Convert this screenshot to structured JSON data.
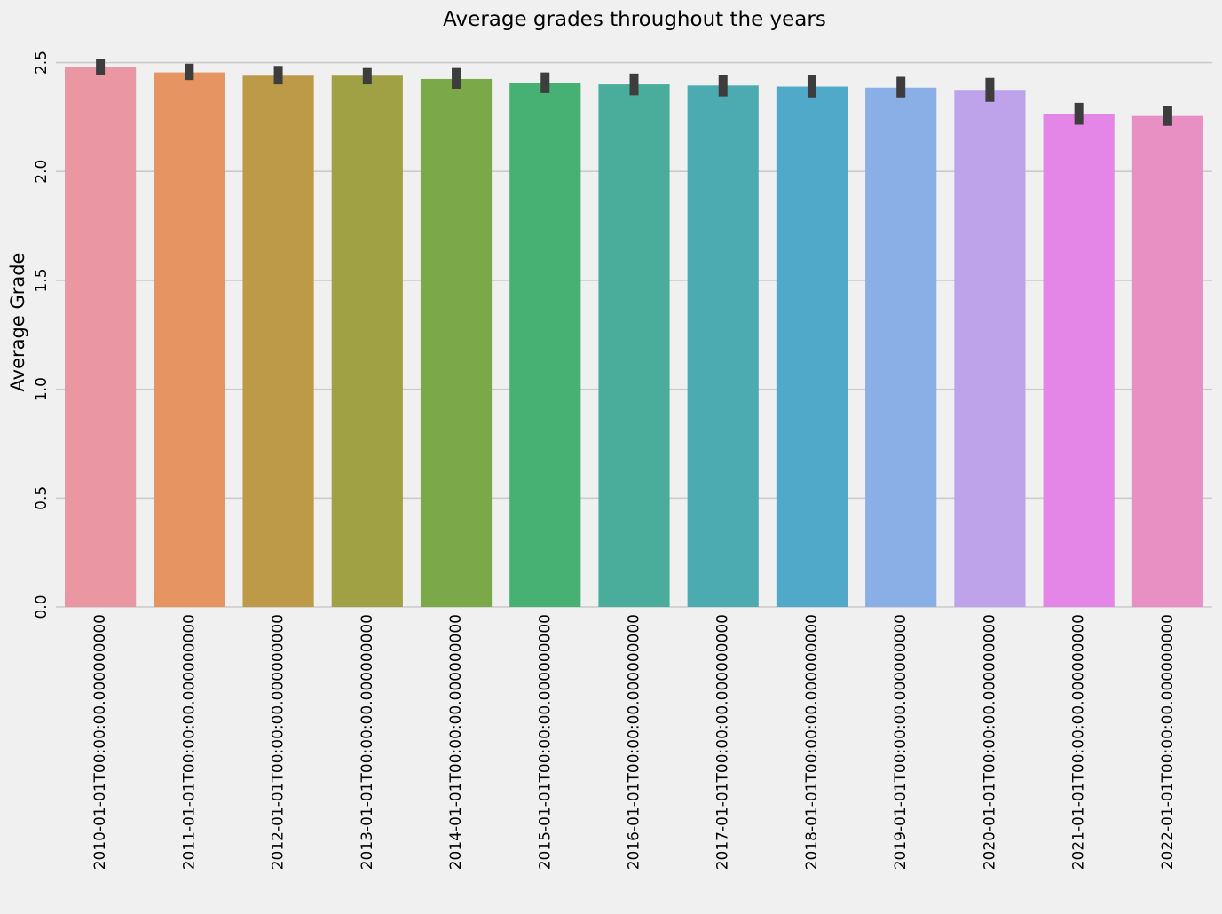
{
  "chart_data": {
    "type": "bar",
    "title": "Average grades throughout the years",
    "xlabel": "",
    "ylabel": "Average Grade",
    "ylim": [
      0,
      2.5
    ],
    "grid": true,
    "yticks": [
      "0.0",
      "0.5",
      "1.0",
      "1.5",
      "2.0",
      "2.5"
    ],
    "categories": [
      "2010-01-01T00:00:00.000000000",
      "2011-01-01T00:00:00.000000000",
      "2012-01-01T00:00:00.000000000",
      "2013-01-01T00:00:00.000000000",
      "2014-01-01T00:00:00.000000000",
      "2015-01-01T00:00:00.000000000",
      "2016-01-01T00:00:00.000000000",
      "2017-01-01T00:00:00.000000000",
      "2018-01-01T00:00:00.000000000",
      "2019-01-01T00:00:00.000000000",
      "2020-01-01T00:00:00.000000000",
      "2021-01-01T00:00:00.000000000",
      "2022-01-01T00:00:00.000000000"
    ],
    "values": [
      2.48,
      2.455,
      2.44,
      2.44,
      2.425,
      2.405,
      2.4,
      2.395,
      2.39,
      2.385,
      2.375,
      2.265,
      2.255
    ],
    "error_low": [
      2.445,
      2.42,
      2.4,
      2.4,
      2.38,
      2.36,
      2.35,
      2.345,
      2.34,
      2.34,
      2.32,
      2.215,
      2.21
    ],
    "error_high": [
      2.515,
      2.495,
      2.485,
      2.475,
      2.475,
      2.455,
      2.45,
      2.445,
      2.445,
      2.435,
      2.43,
      2.315,
      2.3
    ],
    "colors": [
      "#ea96a3",
      "#e59462",
      "#bd9a48",
      "#a0a044",
      "#7ba848",
      "#47b073",
      "#4aad9c",
      "#4cabb0",
      "#50a9c9",
      "#8aaee6",
      "#bea2ea",
      "#e486e8",
      "#e890c4"
    ],
    "error_color": "#3d3d3d",
    "grid_color": "#cbcbcb",
    "background": "#f0f0f0"
  }
}
